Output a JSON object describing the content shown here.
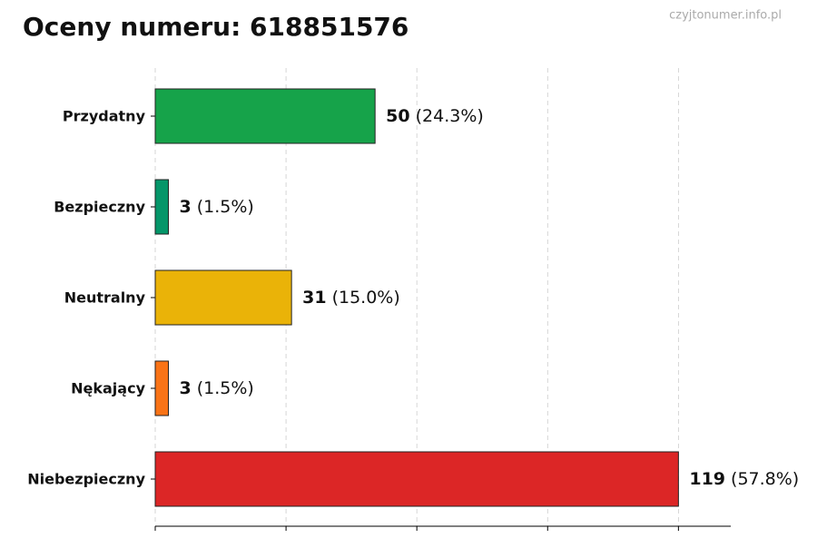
{
  "chart_data": {
    "type": "hbar",
    "title": "Oceny numeru: 618851576",
    "watermark": "czyjtonumer.info.pl",
    "categories": [
      "Przydatny",
      "Bezpieczny",
      "Neutralny",
      "Nękający",
      "Niebezpieczny"
    ],
    "values": [
      50,
      3,
      31,
      3,
      119
    ],
    "percents": [
      24.3,
      1.5,
      15.0,
      1.5,
      57.8
    ],
    "percent_labels": [
      "(24.3%)",
      "(1.5%)",
      "(15.0%)",
      "(1.5%)",
      "(57.8%)"
    ],
    "colors": [
      "#16a34a",
      "#059669",
      "#eab308",
      "#f97316",
      "#dc2626"
    ],
    "xlim": [
      0,
      130.9
    ],
    "xticks": [
      0,
      29.75,
      59.5,
      89.25,
      119
    ],
    "grid": true
  }
}
